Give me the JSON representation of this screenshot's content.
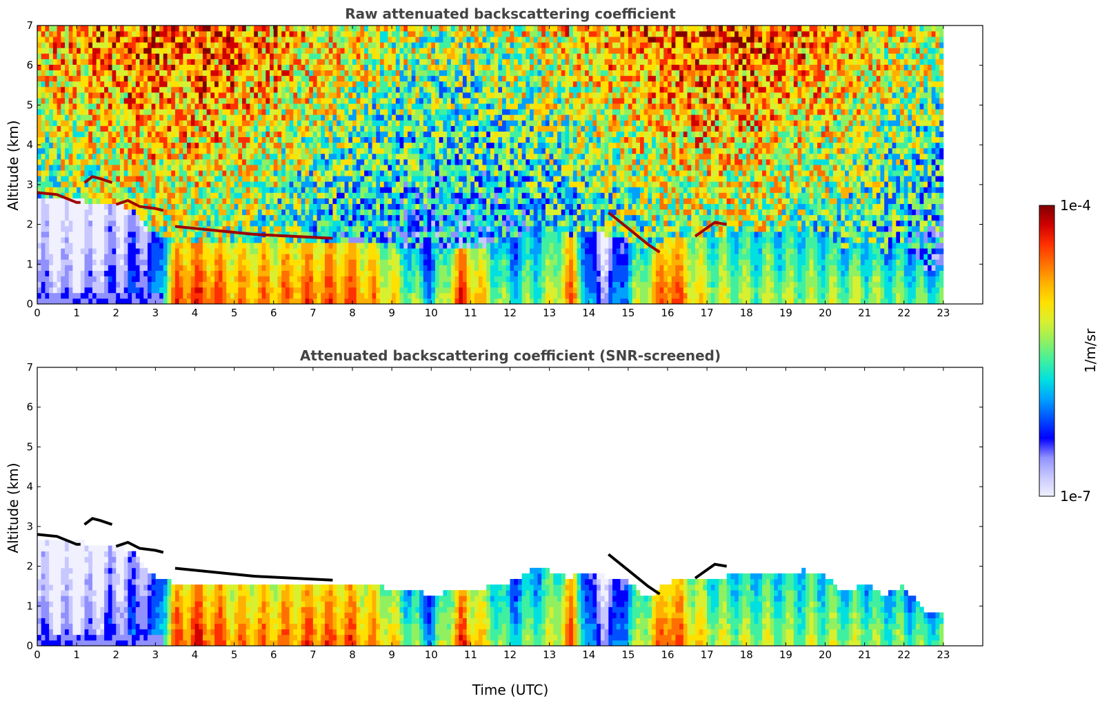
{
  "chart_data": [
    {
      "type": "heatmap",
      "title": "Raw attenuated backscattering coefficient",
      "xlabel": "",
      "ylabel": "Altitude (km)",
      "xlim": [
        0,
        24
      ],
      "ylim": [
        0,
        7
      ],
      "xticks": [
        "0",
        "1",
        "2",
        "3",
        "4",
        "5",
        "6",
        "7",
        "8",
        "9",
        "10",
        "11",
        "12",
        "13",
        "14",
        "15",
        "16",
        "17",
        "18",
        "19",
        "20",
        "21",
        "22",
        "23"
      ],
      "yticks": [
        "0",
        "1",
        "2",
        "3",
        "4",
        "5",
        "6",
        "7"
      ],
      "data_time_range": [
        0,
        23
      ],
      "noise_fraction": 1.0,
      "cloud_layers": [
        {
          "t": [
            0,
            0.5,
            1.0,
            1.1
          ],
          "alt": [
            2.8,
            2.75,
            2.55,
            2.55
          ]
        },
        {
          "t": [
            1.2,
            1.4,
            1.6,
            1.9
          ],
          "alt": [
            3.05,
            3.2,
            3.15,
            3.05
          ]
        },
        {
          "t": [
            2.0,
            2.3,
            2.6,
            3.0,
            3.2
          ],
          "alt": [
            2.5,
            2.6,
            2.45,
            2.4,
            2.35
          ]
        },
        {
          "t": [
            3.5,
            4.5,
            5.5,
            6.5,
            7.5
          ],
          "alt": [
            1.95,
            1.85,
            1.75,
            1.7,
            1.65
          ]
        },
        {
          "t": [
            14.5,
            15.0,
            15.5,
            15.8
          ],
          "alt": [
            2.3,
            1.9,
            1.5,
            1.3
          ]
        },
        {
          "t": [
            16.7,
            17.2,
            17.5
          ],
          "alt": [
            1.7,
            2.05,
            2.0
          ]
        }
      ]
    },
    {
      "type": "heatmap",
      "title": "Attenuated backscattering coefficient (SNR-screened)",
      "xlabel": "Time (UTC)",
      "ylabel": "Altitude (km)",
      "xlim": [
        0,
        24
      ],
      "ylim": [
        0,
        7
      ],
      "xticks": [
        "0",
        "1",
        "2",
        "3",
        "4",
        "5",
        "6",
        "7",
        "8",
        "9",
        "10",
        "11",
        "12",
        "13",
        "14",
        "15",
        "16",
        "17",
        "18",
        "19",
        "20",
        "21",
        "22",
        "23"
      ],
      "yticks": [
        "0",
        "1",
        "2",
        "3",
        "4",
        "5",
        "6",
        "7"
      ],
      "data_time_range": [
        0,
        23
      ],
      "noise_fraction": 0.0,
      "cloud_layers": [
        {
          "t": [
            0,
            0.5,
            1.0,
            1.1
          ],
          "alt": [
            2.8,
            2.75,
            2.55,
            2.55
          ]
        },
        {
          "t": [
            1.2,
            1.4,
            1.6,
            1.9
          ],
          "alt": [
            3.05,
            3.2,
            3.15,
            3.05
          ]
        },
        {
          "t": [
            2.0,
            2.3,
            2.6,
            3.0,
            3.2
          ],
          "alt": [
            2.5,
            2.6,
            2.45,
            2.4,
            2.35
          ]
        },
        {
          "t": [
            3.5,
            4.5,
            5.5,
            6.5,
            7.5
          ],
          "alt": [
            1.95,
            1.85,
            1.75,
            1.7,
            1.65
          ]
        },
        {
          "t": [
            14.5,
            15.0,
            15.5,
            15.8
          ],
          "alt": [
            2.3,
            1.9,
            1.5,
            1.3
          ]
        },
        {
          "t": [
            16.7,
            17.2,
            17.5
          ],
          "alt": [
            1.7,
            2.05,
            2.0
          ]
        }
      ]
    }
  ],
  "colorbar": {
    "label": "1/m/sr",
    "max_label": "1e-4",
    "min_label": "1e-7",
    "scale": "log",
    "range": [
      1e-07,
      0.0001
    ],
    "colors": [
      "#f0f0ff",
      "#c8c8ff",
      "#9090ff",
      "#0000ff",
      "#0050ff",
      "#00a0ff",
      "#00e0e0",
      "#40f0a0",
      "#90f060",
      "#d8f030",
      "#ffe000",
      "#ffb000",
      "#ff7000",
      "#ff3000",
      "#d00000",
      "#800000"
    ]
  },
  "profile": {
    "boundary_layer_top_km": [
      [
        0,
        2.7
      ],
      [
        1,
        2.6
      ],
      [
        2,
        2.55
      ],
      [
        2.5,
        2.3
      ],
      [
        3,
        1.7
      ],
      [
        3.5,
        1.6
      ],
      [
        4,
        1.6
      ],
      [
        5,
        1.58
      ],
      [
        6,
        1.58
      ],
      [
        7,
        1.55
      ],
      [
        8,
        1.55
      ],
      [
        9,
        1.45
      ],
      [
        10,
        1.3
      ],
      [
        11,
        1.4
      ],
      [
        12,
        1.6
      ],
      [
        12.5,
        1.9
      ],
      [
        13,
        1.9
      ],
      [
        13.5,
        1.7
      ],
      [
        14,
        1.9
      ],
      [
        14.5,
        1.7
      ],
      [
        15,
        1.6
      ],
      [
        15.5,
        1.2
      ],
      [
        16,
        1.6
      ],
      [
        16.5,
        1.7
      ],
      [
        17,
        1.65
      ],
      [
        17.5,
        1.75
      ],
      [
        18,
        1.8
      ],
      [
        18.5,
        1.85
      ],
      [
        19,
        1.85
      ],
      [
        19.5,
        1.9
      ],
      [
        20,
        1.8
      ],
      [
        20.5,
        1.3
      ],
      [
        21,
        1.6
      ],
      [
        21.5,
        1.3
      ],
      [
        22,
        1.5
      ],
      [
        22.5,
        0.9
      ],
      [
        23,
        0.8
      ]
    ],
    "aerosol_intensity": [
      [
        0,
        0.15
      ],
      [
        1,
        0.12
      ],
      [
        2,
        0.2
      ],
      [
        3,
        0.3
      ],
      [
        3.5,
        0.8
      ],
      [
        4,
        0.85
      ],
      [
        5,
        0.75
      ],
      [
        6,
        0.75
      ],
      [
        7,
        0.8
      ],
      [
        8,
        0.8
      ],
      [
        9,
        0.65
      ],
      [
        10,
        0.4
      ],
      [
        10.8,
        0.85
      ],
      [
        11,
        0.75
      ],
      [
        12,
        0.45
      ],
      [
        13,
        0.55
      ],
      [
        13.6,
        0.8
      ],
      [
        14,
        0.3
      ],
      [
        14.5,
        0.2
      ],
      [
        15,
        0.45
      ],
      [
        16,
        0.85
      ],
      [
        17,
        0.6
      ],
      [
        18,
        0.55
      ],
      [
        19,
        0.55
      ],
      [
        20,
        0.55
      ],
      [
        21,
        0.55
      ],
      [
        22,
        0.5
      ],
      [
        23,
        0.5
      ]
    ]
  }
}
